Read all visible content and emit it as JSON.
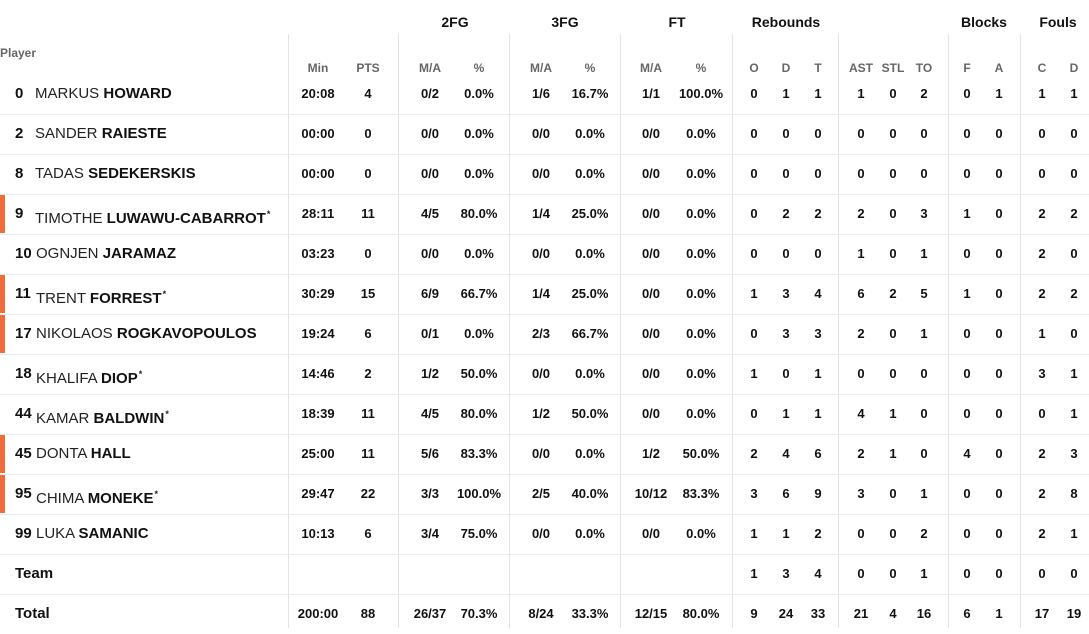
{
  "headers": {
    "player": "Player",
    "groups": {
      "fg2": "2FG",
      "fg3": "3FG",
      "ft": "FT",
      "rebounds": "Rebounds",
      "blocks": "Blocks",
      "fouls": "Fouls"
    },
    "cols": {
      "min": "Min",
      "pts": "PTS",
      "fg2_ma": "M/A",
      "fg2_pct": "%",
      "fg3_ma": "M/A",
      "fg3_pct": "%",
      "ft_ma": "M/A",
      "ft_pct": "%",
      "reb_o": "O",
      "reb_d": "D",
      "reb_t": "T",
      "ast": "AST",
      "stl": "STL",
      "to": "TO",
      "blk_f": "F",
      "blk_a": "A",
      "foul_c": "C",
      "foul_d": "D"
    }
  },
  "accent_color": "#f26b3a",
  "players": [
    {
      "number": "0",
      "first": "MARKUS",
      "last": "HOWARD",
      "starter_mark": "",
      "accent": false,
      "min": "20:08",
      "pts": "4",
      "fg2_ma": "0/2",
      "fg2_pct": "0.0%",
      "fg3_ma": "1/6",
      "fg3_pct": "16.7%",
      "ft_ma": "1/1",
      "ft_pct": "100.0%",
      "reb_o": "0",
      "reb_d": "1",
      "reb_t": "1",
      "ast": "1",
      "stl": "0",
      "to": "2",
      "blk_f": "0",
      "blk_a": "1",
      "foul_c": "1",
      "foul_d": "1"
    },
    {
      "number": "2",
      "first": "SANDER",
      "last": "RAIESTE",
      "starter_mark": "",
      "accent": false,
      "min": "00:00",
      "pts": "0",
      "fg2_ma": "0/0",
      "fg2_pct": "0.0%",
      "fg3_ma": "0/0",
      "fg3_pct": "0.0%",
      "ft_ma": "0/0",
      "ft_pct": "0.0%",
      "reb_o": "0",
      "reb_d": "0",
      "reb_t": "0",
      "ast": "0",
      "stl": "0",
      "to": "0",
      "blk_f": "0",
      "blk_a": "0",
      "foul_c": "0",
      "foul_d": "0"
    },
    {
      "number": "8",
      "first": "TADAS",
      "last": "SEDEKERSKIS",
      "starter_mark": "",
      "accent": false,
      "min": "00:00",
      "pts": "0",
      "fg2_ma": "0/0",
      "fg2_pct": "0.0%",
      "fg3_ma": "0/0",
      "fg3_pct": "0.0%",
      "ft_ma": "0/0",
      "ft_pct": "0.0%",
      "reb_o": "0",
      "reb_d": "0",
      "reb_t": "0",
      "ast": "0",
      "stl": "0",
      "to": "0",
      "blk_f": "0",
      "blk_a": "0",
      "foul_c": "0",
      "foul_d": "0"
    },
    {
      "number": "9",
      "first": "TIMOTHE",
      "last": "LUWAWU-CABARROT",
      "starter_mark": "*",
      "accent": true,
      "min": "28:11",
      "pts": "11",
      "fg2_ma": "4/5",
      "fg2_pct": "80.0%",
      "fg3_ma": "1/4",
      "fg3_pct": "25.0%",
      "ft_ma": "0/0",
      "ft_pct": "0.0%",
      "reb_o": "0",
      "reb_d": "2",
      "reb_t": "2",
      "ast": "2",
      "stl": "0",
      "to": "3",
      "blk_f": "1",
      "blk_a": "0",
      "foul_c": "2",
      "foul_d": "2"
    },
    {
      "number": "10",
      "first": "OGNJEN",
      "last": "JARAMAZ",
      "starter_mark": "",
      "accent": false,
      "min": "03:23",
      "pts": "0",
      "fg2_ma": "0/0",
      "fg2_pct": "0.0%",
      "fg3_ma": "0/0",
      "fg3_pct": "0.0%",
      "ft_ma": "0/0",
      "ft_pct": "0.0%",
      "reb_o": "0",
      "reb_d": "0",
      "reb_t": "0",
      "ast": "1",
      "stl": "0",
      "to": "1",
      "blk_f": "0",
      "blk_a": "0",
      "foul_c": "2",
      "foul_d": "0"
    },
    {
      "number": "11",
      "first": "TRENT",
      "last": "FORREST",
      "starter_mark": "*",
      "accent": true,
      "min": "30:29",
      "pts": "15",
      "fg2_ma": "6/9",
      "fg2_pct": "66.7%",
      "fg3_ma": "1/4",
      "fg3_pct": "25.0%",
      "ft_ma": "0/0",
      "ft_pct": "0.0%",
      "reb_o": "1",
      "reb_d": "3",
      "reb_t": "4",
      "ast": "6",
      "stl": "2",
      "to": "5",
      "blk_f": "1",
      "blk_a": "0",
      "foul_c": "2",
      "foul_d": "2"
    },
    {
      "number": "17",
      "first": "NIKOLAOS",
      "last": "ROGKAVOPOULOS",
      "starter_mark": "",
      "accent": true,
      "min": "19:24",
      "pts": "6",
      "fg2_ma": "0/1",
      "fg2_pct": "0.0%",
      "fg3_ma": "2/3",
      "fg3_pct": "66.7%",
      "ft_ma": "0/0",
      "ft_pct": "0.0%",
      "reb_o": "0",
      "reb_d": "3",
      "reb_t": "3",
      "ast": "2",
      "stl": "0",
      "to": "1",
      "blk_f": "0",
      "blk_a": "0",
      "foul_c": "1",
      "foul_d": "0"
    },
    {
      "number": "18",
      "first": "KHALIFA",
      "last": "DIOP",
      "starter_mark": "*",
      "accent": false,
      "min": "14:46",
      "pts": "2",
      "fg2_ma": "1/2",
      "fg2_pct": "50.0%",
      "fg3_ma": "0/0",
      "fg3_pct": "0.0%",
      "ft_ma": "0/0",
      "ft_pct": "0.0%",
      "reb_o": "1",
      "reb_d": "0",
      "reb_t": "1",
      "ast": "0",
      "stl": "0",
      "to": "0",
      "blk_f": "0",
      "blk_a": "0",
      "foul_c": "3",
      "foul_d": "1"
    },
    {
      "number": "44",
      "first": "KAMAR",
      "last": "BALDWIN",
      "starter_mark": "*",
      "accent": false,
      "min": "18:39",
      "pts": "11",
      "fg2_ma": "4/5",
      "fg2_pct": "80.0%",
      "fg3_ma": "1/2",
      "fg3_pct": "50.0%",
      "ft_ma": "0/0",
      "ft_pct": "0.0%",
      "reb_o": "0",
      "reb_d": "1",
      "reb_t": "1",
      "ast": "4",
      "stl": "1",
      "to": "0",
      "blk_f": "0",
      "blk_a": "0",
      "foul_c": "0",
      "foul_d": "1"
    },
    {
      "number": "45",
      "first": "DONTA",
      "last": "HALL",
      "starter_mark": "",
      "accent": true,
      "min": "25:00",
      "pts": "11",
      "fg2_ma": "5/6",
      "fg2_pct": "83.3%",
      "fg3_ma": "0/0",
      "fg3_pct": "0.0%",
      "ft_ma": "1/2",
      "ft_pct": "50.0%",
      "reb_o": "2",
      "reb_d": "4",
      "reb_t": "6",
      "ast": "2",
      "stl": "1",
      "to": "0",
      "blk_f": "4",
      "blk_a": "0",
      "foul_c": "2",
      "foul_d": "3"
    },
    {
      "number": "95",
      "first": "CHIMA",
      "last": "MONEKE",
      "starter_mark": "*",
      "accent": true,
      "min": "29:47",
      "pts": "22",
      "fg2_ma": "3/3",
      "fg2_pct": "100.0%",
      "fg3_ma": "2/5",
      "fg3_pct": "40.0%",
      "ft_ma": "10/12",
      "ft_pct": "83.3%",
      "reb_o": "3",
      "reb_d": "6",
      "reb_t": "9",
      "ast": "3",
      "stl": "0",
      "to": "1",
      "blk_f": "0",
      "blk_a": "0",
      "foul_c": "2",
      "foul_d": "8"
    },
    {
      "number": "99",
      "first": "LUKA",
      "last": "SAMANIC",
      "starter_mark": "",
      "accent": false,
      "min": "10:13",
      "pts": "6",
      "fg2_ma": "3/4",
      "fg2_pct": "75.0%",
      "fg3_ma": "0/0",
      "fg3_pct": "0.0%",
      "ft_ma": "0/0",
      "ft_pct": "0.0%",
      "reb_o": "1",
      "reb_d": "1",
      "reb_t": "2",
      "ast": "0",
      "stl": "0",
      "to": "2",
      "blk_f": "0",
      "blk_a": "0",
      "foul_c": "2",
      "foul_d": "1"
    }
  ],
  "team": {
    "label": "Team",
    "min": "",
    "pts": "",
    "fg2_ma": "",
    "fg2_pct": "",
    "fg3_ma": "",
    "fg3_pct": "",
    "ft_ma": "",
    "ft_pct": "",
    "reb_o": "1",
    "reb_d": "3",
    "reb_t": "4",
    "ast": "0",
    "stl": "0",
    "to": "1",
    "blk_f": "0",
    "blk_a": "0",
    "foul_c": "0",
    "foul_d": "0"
  },
  "total": {
    "label": "Total",
    "min": "200:00",
    "pts": "88",
    "fg2_ma": "26/37",
    "fg2_pct": "70.3%",
    "fg3_ma": "8/24",
    "fg3_pct": "33.3%",
    "ft_ma": "12/15",
    "ft_pct": "80.0%",
    "reb_o": "9",
    "reb_d": "24",
    "reb_t": "33",
    "ast": "21",
    "stl": "4",
    "to": "16",
    "blk_f": "6",
    "blk_a": "1",
    "foul_c": "17",
    "foul_d": "19"
  }
}
